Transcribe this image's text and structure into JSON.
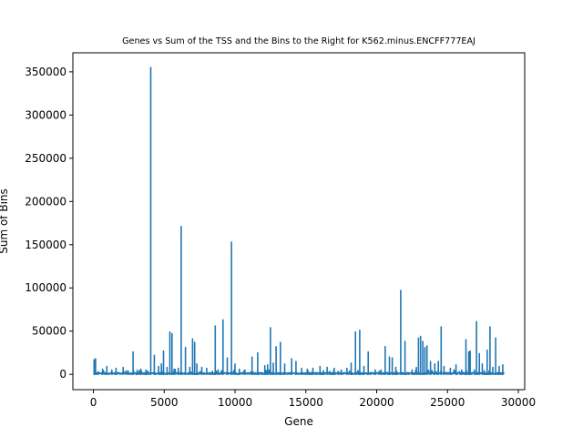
{
  "chart_data": {
    "type": "line",
    "title": "Genes vs Sum of the TSS and the Bins to the Right for K562.minus.ENCFF777EAJ",
    "xlabel": "Gene",
    "ylabel": "Sum of Bins",
    "xlim": [
      -1450,
      30450
    ],
    "ylim": [
      -17700,
      372000
    ],
    "xticks": [
      0,
      5000,
      10000,
      15000,
      20000,
      25000,
      30000
    ],
    "xtick_labels": [
      "0",
      "5000",
      "10000",
      "15000",
      "20000",
      "25000",
      "30000"
    ],
    "yticks": [
      0,
      50000,
      100000,
      150000,
      200000,
      250000,
      300000,
      350000
    ],
    "ytick_labels": [
      "0",
      "50000",
      "100000",
      "150000",
      "200000",
      "250000",
      "300000",
      "350000"
    ],
    "grid": false,
    "legend": "none",
    "color": "#1f77b4",
    "x_range": [
      0,
      29000
    ],
    "baseline": 2000,
    "spikes": [
      [
        50,
        17000
      ],
      [
        150,
        18000
      ],
      [
        350,
        3000
      ],
      [
        650,
        6000
      ],
      [
        950,
        9000
      ],
      [
        1300,
        5000
      ],
      [
        1600,
        7000
      ],
      [
        2100,
        8000
      ],
      [
        2450,
        4000
      ],
      [
        2800,
        26000
      ],
      [
        3100,
        5000
      ],
      [
        3350,
        6000
      ],
      [
        3700,
        5000
      ],
      [
        4050,
        355000
      ],
      [
        4300,
        22000
      ],
      [
        4600,
        9000
      ],
      [
        4800,
        12000
      ],
      [
        4950,
        27000
      ],
      [
        5200,
        8000
      ],
      [
        5400,
        49000
      ],
      [
        5550,
        47000
      ],
      [
        5700,
        6000
      ],
      [
        6000,
        7000
      ],
      [
        6200,
        171000
      ],
      [
        6500,
        31000
      ],
      [
        6800,
        8000
      ],
      [
        7000,
        41000
      ],
      [
        7150,
        37000
      ],
      [
        7300,
        12000
      ],
      [
        7650,
        8000
      ],
      [
        8000,
        7000
      ],
      [
        8600,
        56000
      ],
      [
        8800,
        5000
      ],
      [
        9150,
        63000
      ],
      [
        9450,
        19000
      ],
      [
        9750,
        153000
      ],
      [
        10000,
        12000
      ],
      [
        10300,
        6000
      ],
      [
        10700,
        5000
      ],
      [
        11200,
        20000
      ],
      [
        11600,
        25000
      ],
      [
        12100,
        10000
      ],
      [
        12300,
        11000
      ],
      [
        12500,
        54000
      ],
      [
        12700,
        13000
      ],
      [
        12900,
        32000
      ],
      [
        13200,
        37000
      ],
      [
        13500,
        12000
      ],
      [
        14000,
        18000
      ],
      [
        14300,
        15000
      ],
      [
        14700,
        7000
      ],
      [
        15100,
        6000
      ],
      [
        15500,
        7000
      ],
      [
        16000,
        9000
      ],
      [
        16500,
        8000
      ],
      [
        17000,
        7000
      ],
      [
        17500,
        5000
      ],
      [
        17900,
        7000
      ],
      [
        18200,
        13000
      ],
      [
        18500,
        49000
      ],
      [
        18800,
        51000
      ],
      [
        19100,
        9000
      ],
      [
        19400,
        26000
      ],
      [
        19900,
        5000
      ],
      [
        20300,
        5000
      ],
      [
        20600,
        32000
      ],
      [
        20900,
        20000
      ],
      [
        21100,
        19000
      ],
      [
        21350,
        8000
      ],
      [
        21700,
        97000
      ],
      [
        22000,
        38000
      ],
      [
        22500,
        5000
      ],
      [
        22800,
        8000
      ],
      [
        22950,
        42000
      ],
      [
        23100,
        44000
      ],
      [
        23250,
        38000
      ],
      [
        23400,
        31000
      ],
      [
        23550,
        33000
      ],
      [
        23800,
        15000
      ],
      [
        24100,
        12000
      ],
      [
        24350,
        15000
      ],
      [
        24550,
        55000
      ],
      [
        24750,
        9000
      ],
      [
        25200,
        7000
      ],
      [
        25600,
        11000
      ],
      [
        26000,
        5000
      ],
      [
        26300,
        40000
      ],
      [
        26500,
        26000
      ],
      [
        26600,
        27000
      ],
      [
        26900,
        5000
      ],
      [
        27050,
        61000
      ],
      [
        27250,
        24000
      ],
      [
        27450,
        12000
      ],
      [
        27800,
        28000
      ],
      [
        28000,
        55000
      ],
      [
        28200,
        8000
      ],
      [
        28400,
        42000
      ],
      [
        28650,
        9000
      ],
      [
        28900,
        11000
      ]
    ]
  }
}
